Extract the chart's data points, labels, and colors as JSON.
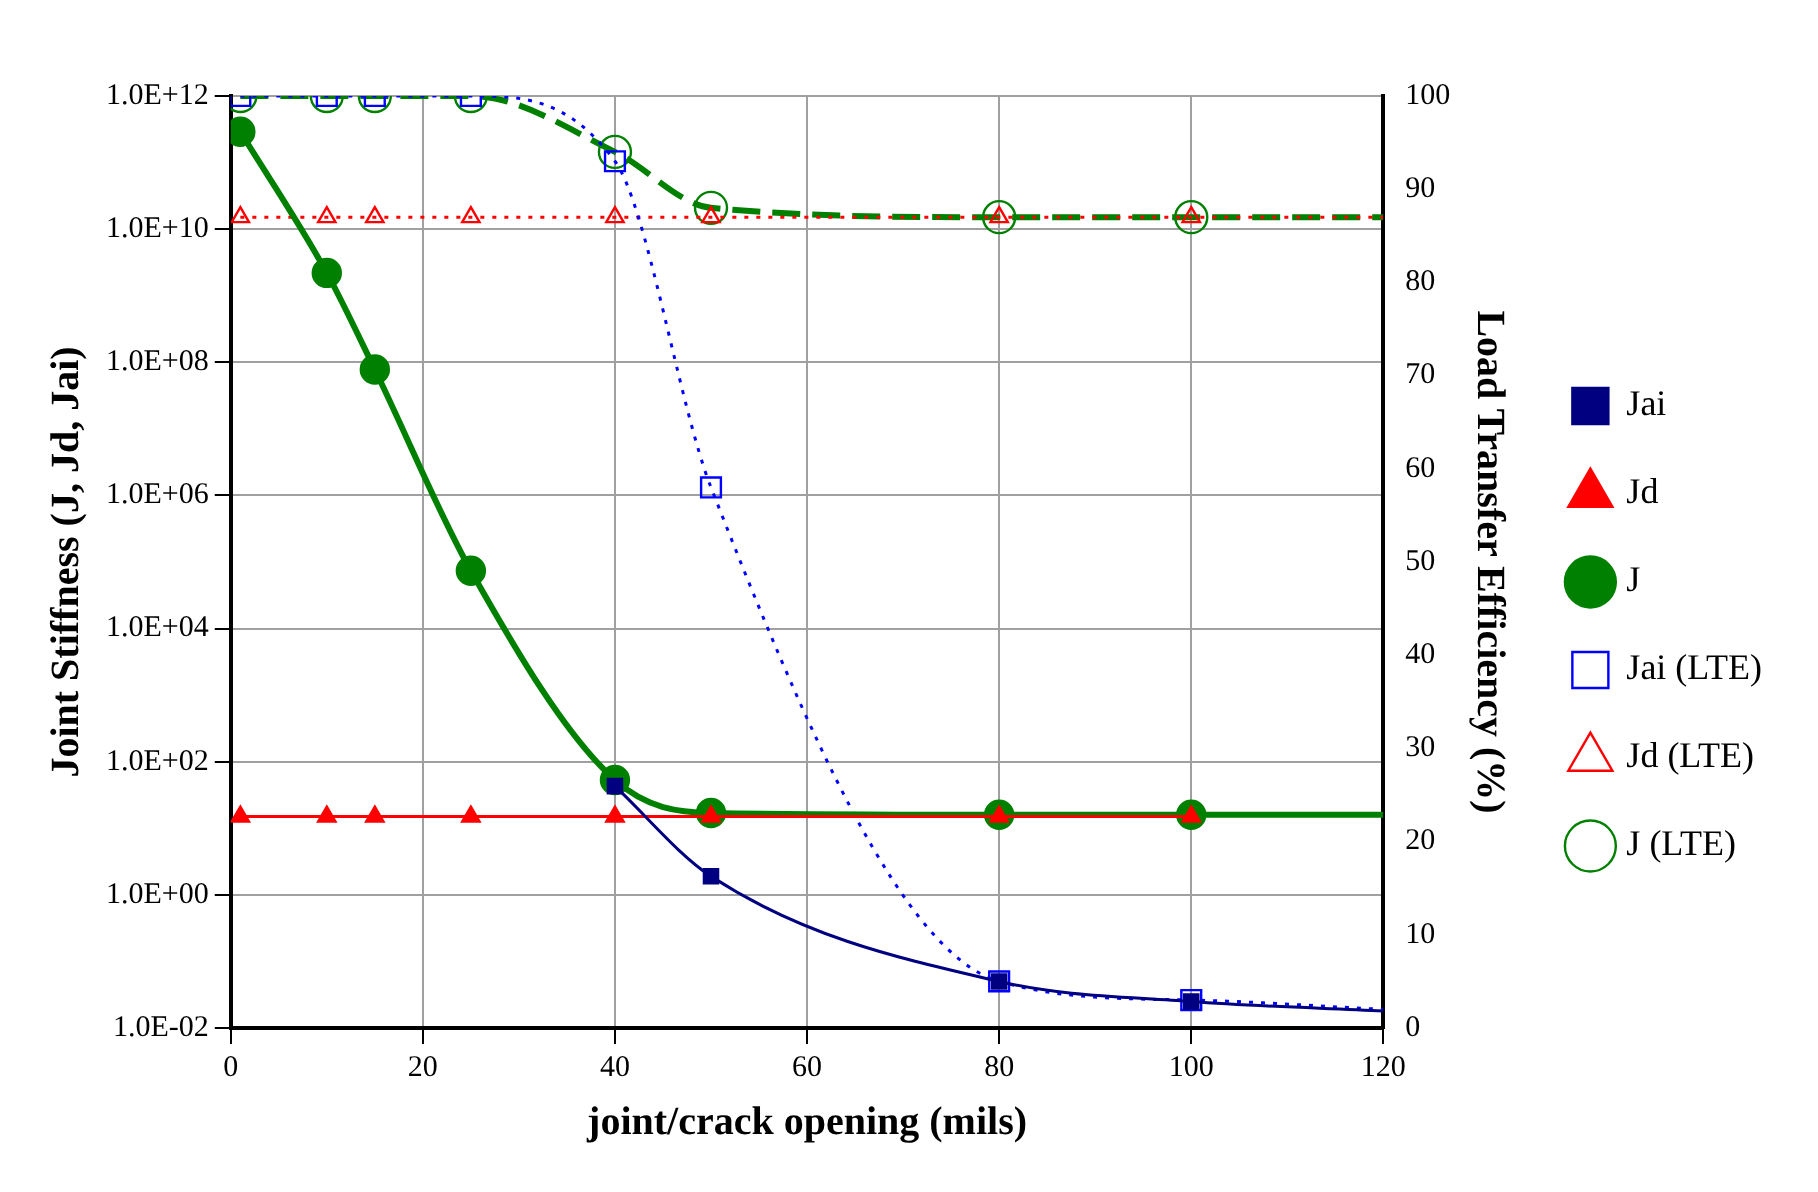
{
  "chart_data": {
    "type": "line",
    "xlabel": "joint/crack opening (mils)",
    "ylabel": "Joint Stiffness (J, Jd, Jai)",
    "y2label": "Load Transfer Efficiency (%)",
    "xlim": [
      0,
      120
    ],
    "xticks": [
      0,
      20,
      40,
      60,
      80,
      100,
      120
    ],
    "log": "y",
    "ylim": [
      0.01,
      1000000000000
    ],
    "yticks": [
      {
        "value": 0.01,
        "label": "1.0E-02"
      },
      {
        "value": 1,
        "label": "1.0E+00"
      },
      {
        "value": 100,
        "label": "1.0E+02"
      },
      {
        "value": 10000,
        "label": "1.0E+04"
      },
      {
        "value": 1000000,
        "label": "1.0E+06"
      },
      {
        "value": 100000000,
        "label": "1.0E+08"
      },
      {
        "value": 10000000000,
        "label": "1.0E+10"
      },
      {
        "value": 1000000000000,
        "label": "1.0E+12"
      }
    ],
    "y2lim": [
      0,
      100
    ],
    "y2ticks": [
      0,
      10,
      20,
      30,
      40,
      50,
      60,
      70,
      80,
      90,
      100
    ],
    "grid": true,
    "legend": "right",
    "series": [
      {
        "name": "Jai",
        "color": "#000080",
        "marker": "square",
        "line_style": "solid",
        "x": [
          40,
          50,
          80,
          100,
          120
        ],
        "values": [
          43,
          1.9,
          0.05,
          0.025,
          0.018
        ]
      },
      {
        "name": "Jd",
        "color": "#ff0000",
        "marker": "triangle",
        "line_style": "solid",
        "x": [
          1,
          10,
          15,
          25,
          40,
          50,
          80,
          100
        ],
        "values": [
          15,
          15,
          15,
          15,
          15,
          15,
          15,
          15
        ]
      },
      {
        "name": "J",
        "color": "#008000",
        "marker": "circle",
        "line_style": "solid",
        "x": [
          1,
          10,
          15,
          25,
          40,
          50,
          80,
          100,
          120
        ],
        "values": [
          290000000000,
          2200000000,
          78000000,
          74000,
          53,
          17,
          16,
          16,
          16
        ]
      },
      {
        "name": "Jai (LTE)",
        "color": "#0000ff",
        "marker": "square",
        "line_style": "dotted",
        "axis": "y2",
        "x": [
          1,
          10,
          15,
          25,
          40,
          50,
          80,
          100,
          120
        ],
        "values": [
          100,
          100,
          100,
          100,
          93,
          58,
          5,
          3,
          2
        ]
      },
      {
        "name": "Jd (LTE)",
        "color": "#ff0000",
        "marker": "triangle",
        "line_style": "dotted",
        "axis": "y2",
        "x": [
          1,
          10,
          15,
          25,
          40,
          50,
          80,
          100,
          120
        ],
        "values": [
          87,
          87,
          87,
          87,
          87,
          87,
          87,
          87,
          87
        ]
      },
      {
        "name": "J (LTE)",
        "color": "#008000",
        "marker": "circle",
        "line_style": "dashed",
        "axis": "y2",
        "x": [
          1,
          10,
          15,
          25,
          40,
          50,
          80,
          100,
          120
        ],
        "values": [
          100,
          100,
          100,
          100,
          94,
          88,
          87,
          87,
          87
        ]
      }
    ]
  }
}
